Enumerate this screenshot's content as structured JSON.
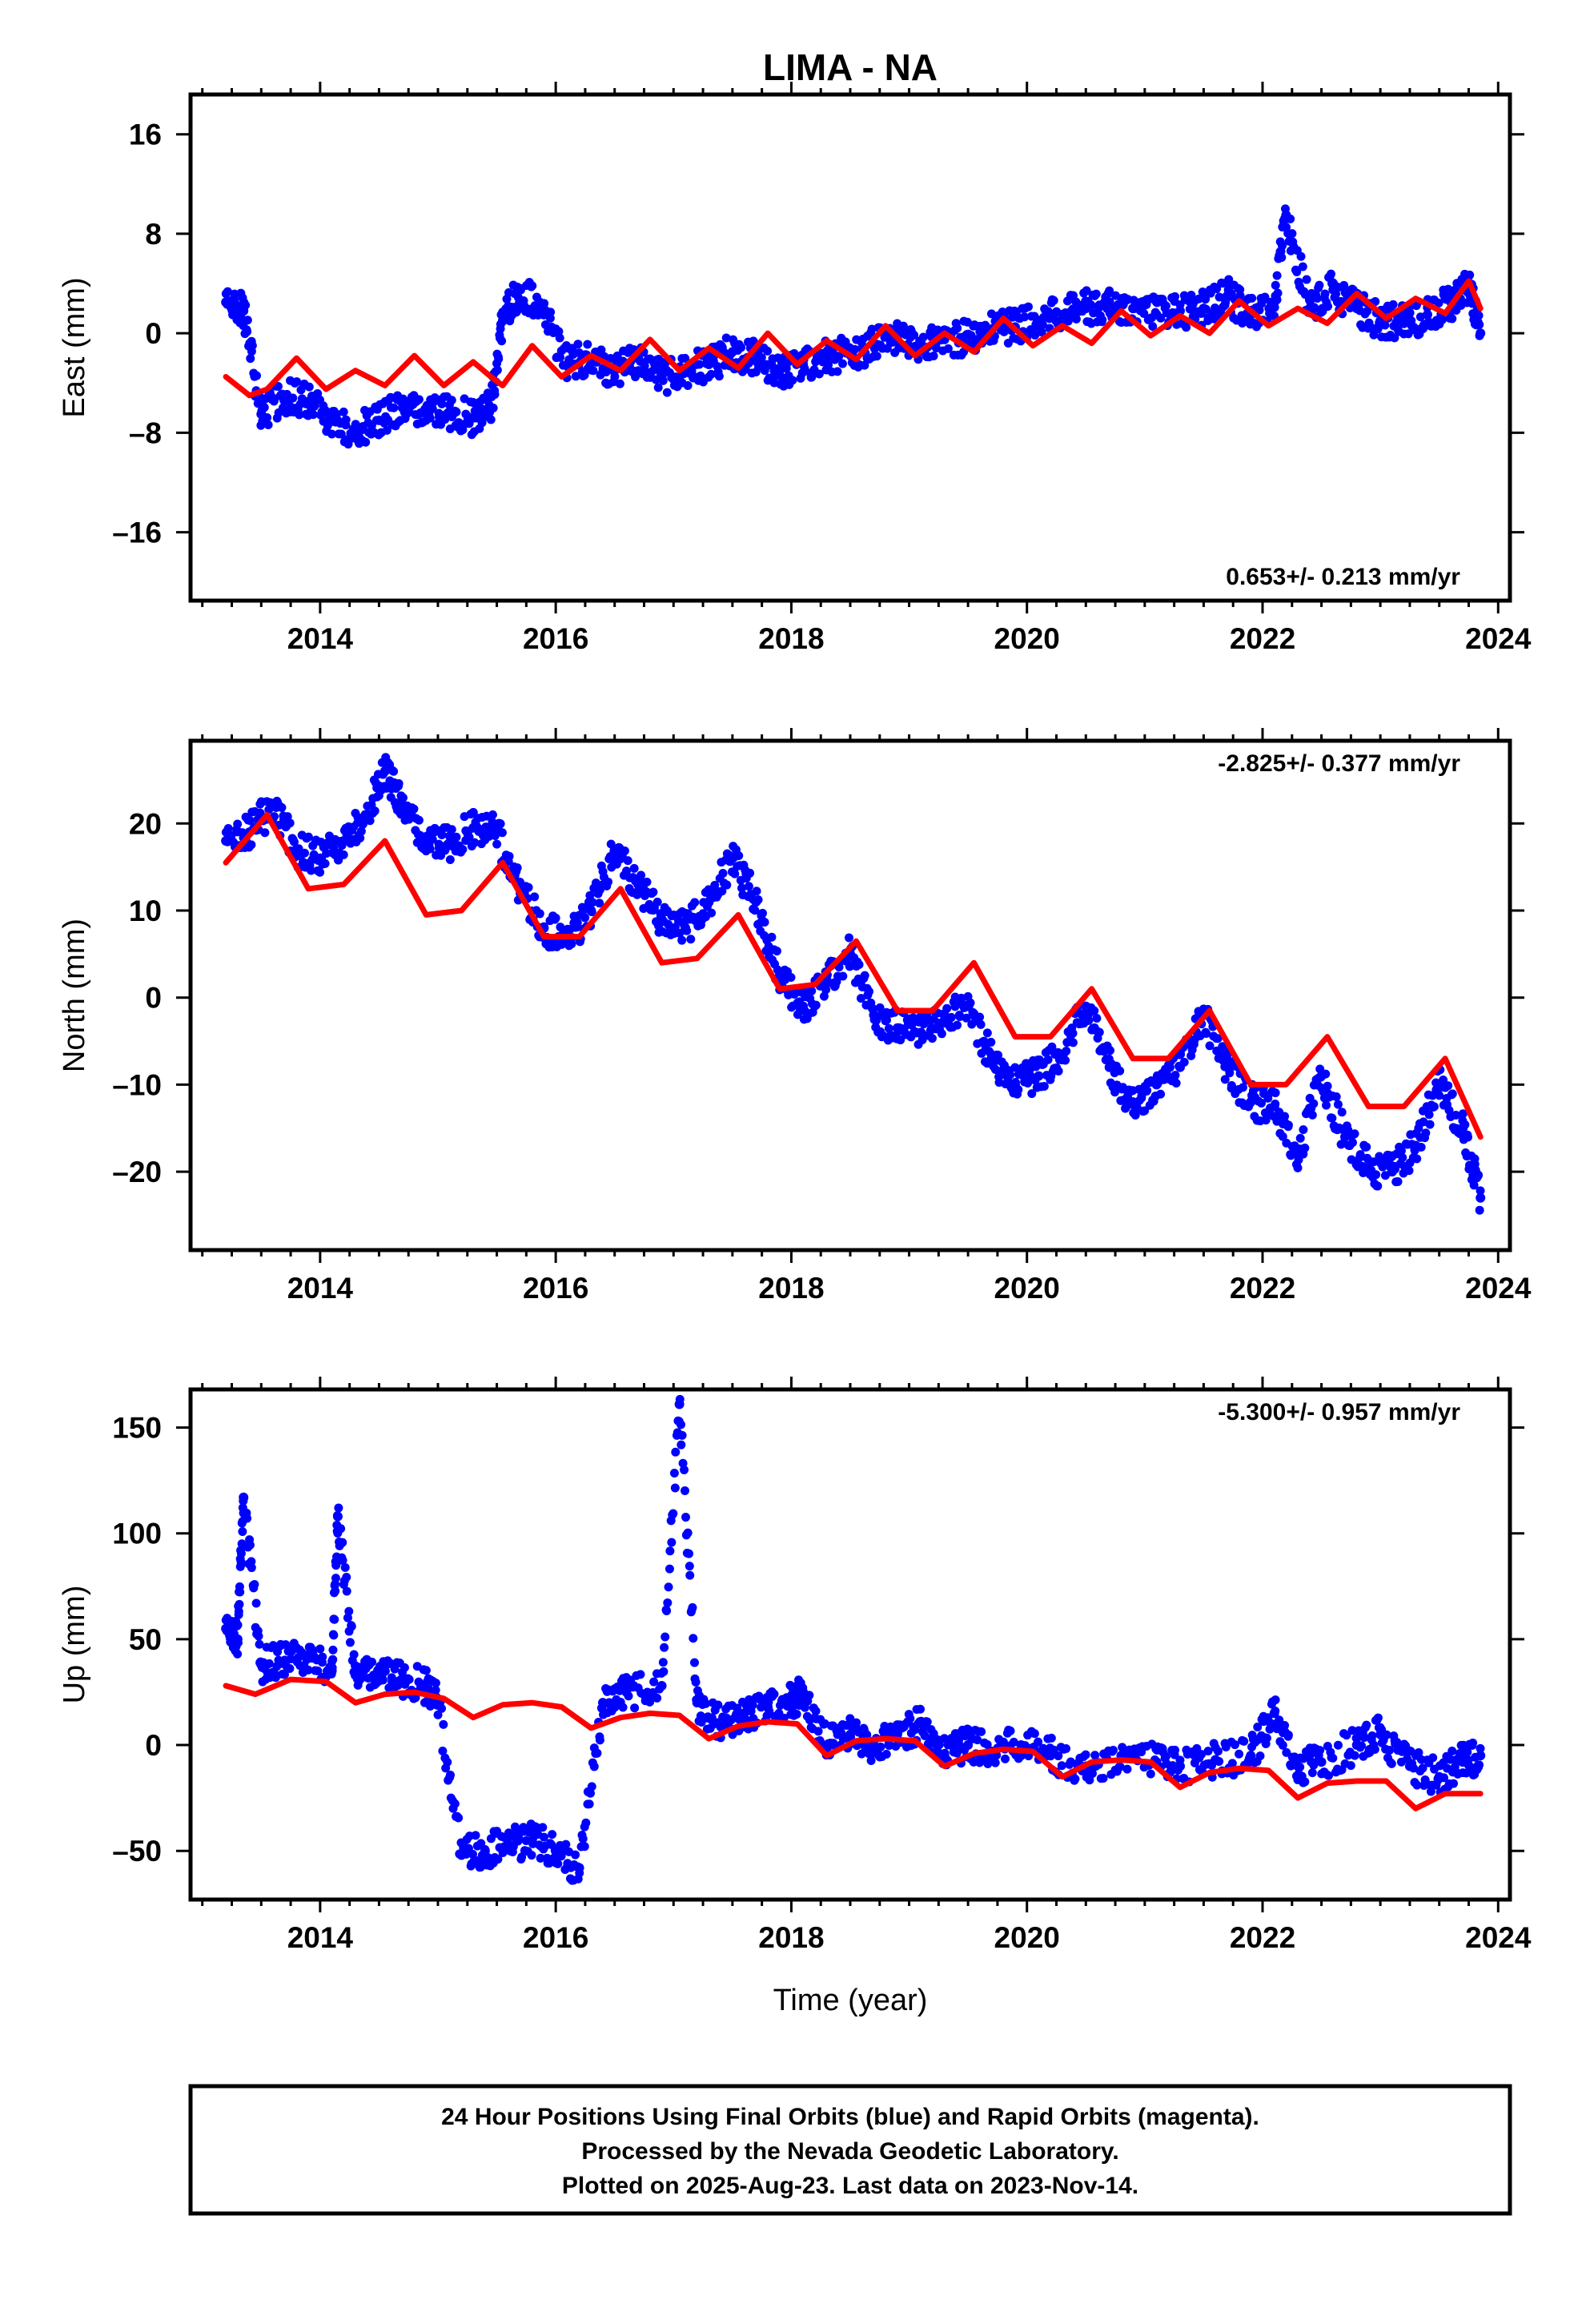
{
  "title": "LIMA - NA",
  "xlabel": "Time (year)",
  "caption": {
    "lines": [
      "24 Hour Positions Using Final Orbits (blue) and Rapid Orbits (magenta).",
      "Processed by the Nevada Geodetic Laboratory.",
      "Plotted on 2025-Aug-23. Last data on 2023-Nov-14."
    ]
  },
  "colors": {
    "data": "#0000ff",
    "model": "#ff0000",
    "frame": "#000000"
  },
  "chart_data": [
    {
      "type": "scatter",
      "ylabel": "East (mm)",
      "rate_label": "0.653+/- 0.213 mm/yr",
      "rate_position": "bottom-right",
      "xlim": [
        2012.9,
        2024.1
      ],
      "ylim": [
        -21.5,
        19.2
      ],
      "xticks": [
        2014,
        2016,
        2018,
        2020,
        2022,
        2024
      ],
      "xtick_labels": [
        "2014",
        "2016",
        "2018",
        "2020",
        "2022",
        "2024"
      ],
      "yticks": [
        -16,
        -8,
        0,
        8,
        16
      ],
      "ytick_labels": [
        "–16",
        "–8",
        "0",
        "8",
        "16"
      ],
      "series": [
        {
          "role": "observations",
          "color": "#0000ff",
          "x": [
            2013.2,
            2013.35,
            2013.5,
            2013.7,
            2013.9,
            2014.1,
            2014.3,
            2014.5,
            2014.7,
            2014.9,
            2015.1,
            2015.3,
            2015.45,
            2015.55,
            2015.7,
            2015.9,
            2016.1,
            2016.3,
            2016.5,
            2016.7,
            2016.9,
            2017.1,
            2017.3,
            2017.5,
            2017.7,
            2017.9,
            2018.1,
            2018.3,
            2018.5,
            2018.7,
            2018.9,
            2019.1,
            2019.3,
            2019.5,
            2019.7,
            2019.9,
            2020.1,
            2020.3,
            2020.5,
            2020.7,
            2020.9,
            2021.1,
            2021.3,
            2021.5,
            2021.7,
            2021.9,
            2022.1,
            2022.2,
            2022.4,
            2022.6,
            2022.8,
            2023.0,
            2023.2,
            2023.4,
            2023.6,
            2023.75,
            2023.85
          ],
          "y": [
            2.5,
            1.8,
            -6.5,
            -5.0,
            -5.5,
            -7.0,
            -8.0,
            -7.0,
            -6.0,
            -6.2,
            -6.5,
            -6.8,
            -6.0,
            1.0,
            3.5,
            1.5,
            -2.5,
            -2.0,
            -3.0,
            -2.0,
            -3.5,
            -3.0,
            -2.5,
            -1.5,
            -2.0,
            -3.0,
            -2.5,
            -2.0,
            -1.5,
            -1.0,
            -0.5,
            -0.8,
            -0.5,
            -0.3,
            0.2,
            0.5,
            1.0,
            1.5,
            2.0,
            2.5,
            2.0,
            1.5,
            1.8,
            2.0,
            3.0,
            1.5,
            2.5,
            9.5,
            2.0,
            3.5,
            2.0,
            1.0,
            0.8,
            1.5,
            2.5,
            4.0,
            0.0
          ]
        },
        {
          "role": "model",
          "color": "#ff0000",
          "x": [
            2013.2,
            2013.4,
            2013.55,
            2013.8,
            2014.05,
            2014.3,
            2014.55,
            2014.8,
            2015.05,
            2015.3,
            2015.45,
            2015.55,
            2015.8,
            2016.05,
            2016.3,
            2016.55,
            2016.8,
            2017.05,
            2017.3,
            2017.55,
            2017.8,
            2018.05,
            2018.3,
            2018.55,
            2018.8,
            2019.05,
            2019.3,
            2019.55,
            2019.8,
            2020.05,
            2020.3,
            2020.55,
            2020.8,
            2021.05,
            2021.3,
            2021.55,
            2021.8,
            2022.05,
            2022.3,
            2022.55,
            2022.8,
            2023.05,
            2023.3,
            2023.55,
            2023.75,
            2023.85
          ],
          "y": [
            -3.5,
            -5.0,
            -4.5,
            -2.0,
            -4.5,
            -3.0,
            -4.2,
            -1.8,
            -4.2,
            -2.3,
            -3.5,
            -4.2,
            -1.0,
            -3.5,
            -1.8,
            -3.0,
            -0.5,
            -3.0,
            -1.2,
            -2.8,
            0.0,
            -2.5,
            -0.6,
            -2.1,
            0.6,
            -1.8,
            0.0,
            -1.5,
            1.2,
            -1.0,
            0.6,
            -0.8,
            1.8,
            -0.2,
            1.4,
            0.0,
            2.6,
            0.6,
            2.0,
            0.8,
            3.2,
            1.2,
            2.8,
            1.6,
            4.2,
            2.0
          ]
        }
      ]
    },
    {
      "type": "scatter",
      "ylabel": "North (mm)",
      "rate_label": "-2.825+/- 0.377 mm/yr",
      "rate_position": "top-right",
      "xlim": [
        2012.9,
        2024.1
      ],
      "ylim": [
        -29.0,
        29.5
      ],
      "xticks": [
        2014,
        2016,
        2018,
        2020,
        2022,
        2024
      ],
      "xtick_labels": [
        "2014",
        "2016",
        "2018",
        "2020",
        "2022",
        "2024"
      ],
      "yticks": [
        -20,
        -10,
        0,
        10,
        20
      ],
      "ytick_labels": [
        "–20",
        "–10",
        "0",
        "10",
        "20"
      ],
      "series": [
        {
          "role": "observations",
          "color": "#0000ff",
          "x": [
            2013.2,
            2013.4,
            2013.6,
            2013.8,
            2014.0,
            2014.2,
            2014.4,
            2014.55,
            2014.7,
            2014.9,
            2015.1,
            2015.3,
            2015.5,
            2015.7,
            2015.9,
            2016.1,
            2016.3,
            2016.5,
            2016.7,
            2016.9,
            2017.1,
            2017.3,
            2017.5,
            2017.7,
            2017.9,
            2018.1,
            2018.3,
            2018.5,
            2018.7,
            2018.9,
            2019.1,
            2019.3,
            2019.5,
            2019.7,
            2019.9,
            2020.1,
            2020.3,
            2020.5,
            2020.7,
            2020.9,
            2021.1,
            2021.3,
            2021.5,
            2021.7,
            2021.9,
            2022.1,
            2022.3,
            2022.5,
            2022.7,
            2022.9,
            2023.1,
            2023.3,
            2023.5,
            2023.7,
            2023.85
          ],
          "y": [
            18.0,
            19.0,
            22.0,
            17.0,
            16.0,
            18.0,
            21.0,
            26.0,
            22.0,
            18.0,
            17.5,
            19.5,
            19.0,
            12.0,
            8.0,
            6.5,
            10.0,
            17.0,
            13.0,
            9.0,
            8.0,
            11.0,
            16.0,
            11.0,
            2.5,
            -1.0,
            2.0,
            5.0,
            -2.0,
            -3.5,
            -4.0,
            -2.0,
            -1.0,
            -7.0,
            -10.0,
            -9.0,
            -6.5,
            -1.0,
            -8.0,
            -12.0,
            -10.0,
            -8.0,
            -2.0,
            -8.0,
            -12.0,
            -12.5,
            -18.0,
            -9.0,
            -16.0,
            -19.5,
            -20.0,
            -17.0,
            -10.0,
            -15.0,
            -23.0
          ]
        },
        {
          "role": "model",
          "color": "#ff0000",
          "x": [
            2013.2,
            2013.55,
            2013.9,
            2014.2,
            2014.55,
            2014.9,
            2015.2,
            2015.55,
            2015.9,
            2016.2,
            2016.55,
            2016.9,
            2017.2,
            2017.55,
            2017.9,
            2018.2,
            2018.55,
            2018.9,
            2019.2,
            2019.55,
            2019.9,
            2020.2,
            2020.55,
            2020.9,
            2021.2,
            2021.55,
            2021.9,
            2022.2,
            2022.55,
            2022.9,
            2023.2,
            2023.55,
            2023.85
          ],
          "y": [
            15.5,
            21.0,
            12.5,
            13.0,
            18.0,
            9.5,
            10.0,
            15.5,
            7.0,
            7.0,
            12.5,
            4.0,
            4.5,
            9.5,
            1.0,
            1.5,
            6.5,
            -1.5,
            -1.5,
            4.0,
            -4.5,
            -4.5,
            1.0,
            -7.0,
            -7.0,
            -1.5,
            -10.0,
            -10.0,
            -4.5,
            -12.5,
            -12.5,
            -7.0,
            -16.0
          ]
        }
      ]
    },
    {
      "type": "scatter",
      "ylabel": "Up (mm)",
      "rate_label": "-5.300+/- 0.957 mm/yr",
      "rate_position": "top-right",
      "xlim": [
        2012.9,
        2024.1
      ],
      "ylim": [
        -73.0,
        168.0
      ],
      "xticks": [
        2014,
        2016,
        2018,
        2020,
        2022,
        2024
      ],
      "xtick_labels": [
        "2014",
        "2016",
        "2018",
        "2020",
        "2022",
        "2024"
      ],
      "yticks": [
        -50,
        0,
        50,
        100,
        150
      ],
      "ytick_labels": [
        "–50",
        "0",
        "50",
        "100",
        "150"
      ],
      "series": [
        {
          "role": "observations",
          "color": "#0000ff",
          "x": [
            2013.2,
            2013.3,
            2013.35,
            2013.5,
            2013.7,
            2013.9,
            2014.1,
            2014.15,
            2014.3,
            2014.5,
            2014.7,
            2014.9,
            2015.0,
            2015.2,
            2015.4,
            2015.6,
            2015.8,
            2016.0,
            2016.2,
            2016.4,
            2016.6,
            2016.9,
            2017.05,
            2017.2,
            2017.4,
            2017.6,
            2017.8,
            2018.0,
            2018.1,
            2018.3,
            2018.5,
            2018.7,
            2018.9,
            2019.1,
            2019.3,
            2019.5,
            2019.7,
            2019.95,
            2020.2,
            2020.5,
            2020.8,
            2021.1,
            2021.3,
            2021.6,
            2021.9,
            2022.1,
            2022.3,
            2022.5,
            2022.8,
            2023.0,
            2023.25,
            2023.5,
            2023.7,
            2023.85
          ],
          "y": [
            55.0,
            50.0,
            117.0,
            38.0,
            40.0,
            42.0,
            35.0,
            108.0,
            33.0,
            35.0,
            30.0,
            28.0,
            20.0,
            -52.0,
            -50.0,
            -47.0,
            -45.0,
            -50.0,
            -58.0,
            20.0,
            25.0,
            28.0,
            161.0,
            20.0,
            10.0,
            15.0,
            18.0,
            20.0,
            25.0,
            0.0,
            5.0,
            0.0,
            5.0,
            10.0,
            -5.0,
            0.0,
            -3.0,
            0.0,
            -5.0,
            -10.0,
            -5.0,
            -8.0,
            -10.0,
            -7.0,
            -5.0,
            15.0,
            -10.0,
            -8.0,
            0.0,
            5.0,
            -10.0,
            -15.0,
            -8.0,
            -5.0
          ]
        },
        {
          "role": "model",
          "color": "#ff0000",
          "x": [
            2013.2,
            2013.45,
            2013.75,
            2014.05,
            2014.3,
            2014.55,
            2014.8,
            2015.05,
            2015.3,
            2015.55,
            2015.8,
            2016.05,
            2016.3,
            2016.55,
            2016.8,
            2017.05,
            2017.3,
            2017.55,
            2017.8,
            2018.05,
            2018.3,
            2018.55,
            2018.8,
            2019.05,
            2019.3,
            2019.55,
            2019.8,
            2020.05,
            2020.3,
            2020.55,
            2020.8,
            2021.05,
            2021.3,
            2021.55,
            2021.8,
            2022.05,
            2022.3,
            2022.55,
            2022.8,
            2023.05,
            2023.3,
            2023.55,
            2023.85
          ],
          "y": [
            28.0,
            24.0,
            31.0,
            30.0,
            20.0,
            24.0,
            25.0,
            22.0,
            13.0,
            19.0,
            20.0,
            18.0,
            8.0,
            13.0,
            15.0,
            14.0,
            3.0,
            9.0,
            11.0,
            10.0,
            -5.0,
            2.0,
            3.0,
            2.0,
            -10.0,
            -4.0,
            -2.0,
            -3.0,
            -15.0,
            -8.0,
            -7.0,
            -8.0,
            -20.0,
            -13.0,
            -11.0,
            -12.0,
            -25.0,
            -18.0,
            -17.0,
            -17.0,
            -30.0,
            -23.0,
            -23.0
          ]
        }
      ]
    }
  ]
}
